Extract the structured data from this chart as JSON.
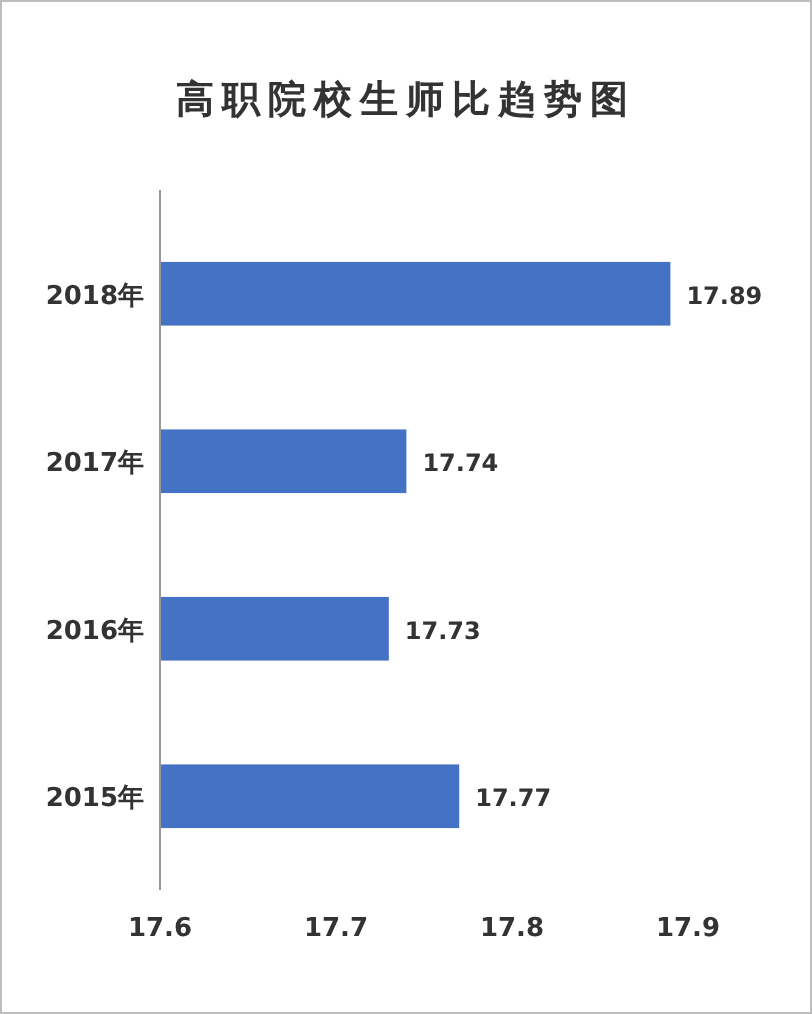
{
  "chart_data": {
    "type": "bar",
    "orientation": "horizontal",
    "title": "高职院校生师比趋势图",
    "categories": [
      "2018年",
      "2017年",
      "2016年",
      "2015年"
    ],
    "values": [
      17.89,
      17.74,
      17.73,
      17.77
    ],
    "color": "#4472c4",
    "xlim": [
      17.6,
      17.9
    ],
    "xticks": [
      17.6,
      17.7,
      17.8,
      17.9
    ],
    "data_labels": true,
    "grid": false
  }
}
